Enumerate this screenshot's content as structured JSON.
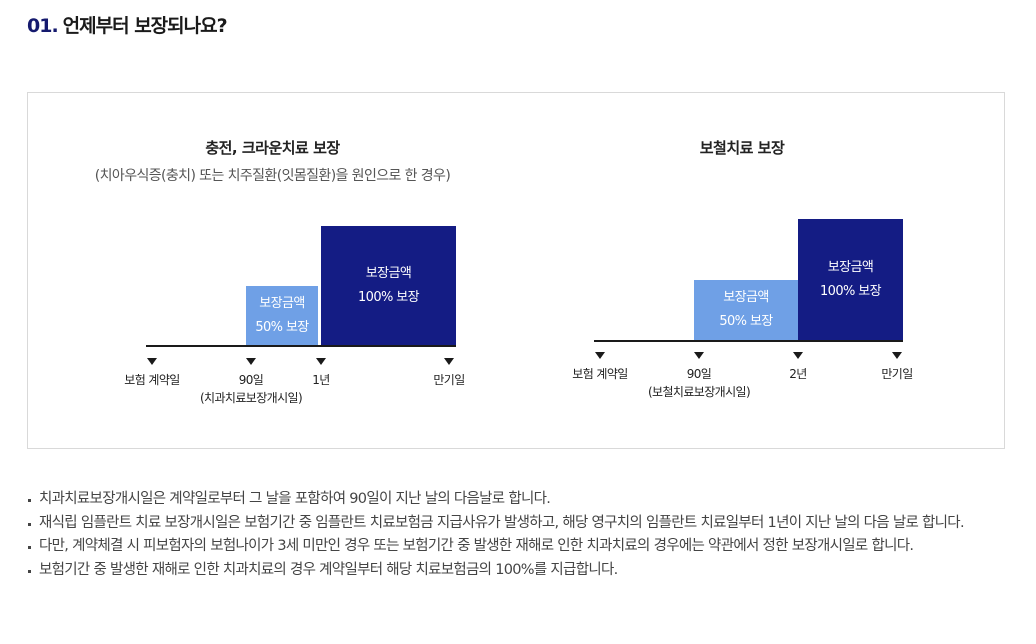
{
  "heading": {
    "number": "01.",
    "title": "언제부터 보장되나요?"
  },
  "panels": [
    {
      "title": "충전, 크라운치료 보장",
      "subtitle": "(치아우식증(충치) 또는 치주질환(잇몸질환)을 원인으로 한 경우)",
      "bars": [
        {
          "line1": "보장금액",
          "line2": "50% 보장",
          "level_percent": 50,
          "color": "#6fa0e6"
        },
        {
          "line1": "보장금액",
          "line2": "100% 보장",
          "level_percent": 100,
          "color": "#141c84"
        }
      ],
      "ticks": [
        {
          "label": "보험 계약일",
          "sub": ""
        },
        {
          "label": "90일",
          "sub": "(치과치료보장개시일)"
        },
        {
          "label": "1년",
          "sub": ""
        },
        {
          "label": "만기일",
          "sub": ""
        }
      ]
    },
    {
      "title": "보철치료 보장",
      "subtitle": "",
      "bars": [
        {
          "line1": "보장금액",
          "line2": "50% 보장",
          "level_percent": 50,
          "color": "#6fa0e6"
        },
        {
          "line1": "보장금액",
          "line2": "100% 보장",
          "level_percent": 100,
          "color": "#141c84"
        }
      ],
      "ticks": [
        {
          "label": "보험 계약일",
          "sub": ""
        },
        {
          "label": "90일",
          "sub": "(보철치료보장개시일)"
        },
        {
          "label": "2년",
          "sub": ""
        },
        {
          "label": "만기일",
          "sub": ""
        }
      ]
    }
  ],
  "notes": [
    "치과치료보장개시일은 계약일로부터 그 날을 포함하여 90일이 지난 날의 다음날로 합니다.",
    "재식립 임플란트 치료 보장개시일은 보험기간 중 임플란트 치료보험금 지급사유가 발생하고, 해당 영구치의 임플란트 치료일부터 1년이 지난 날의 다음 날로 합니다.",
    "다만, 계약체결 시 피보험자의 보험나이가 3세 미만인 경우 또는 보험기간 중 발생한 재해로 인한 치과치료의 경우에는 약관에서 정한 보장개시일로 합니다.",
    "보험기간 중 발생한 재해로 인한 치과치료의 경우 계약일부터 해당 치료보험금의 100%를 지급합니다."
  ]
}
